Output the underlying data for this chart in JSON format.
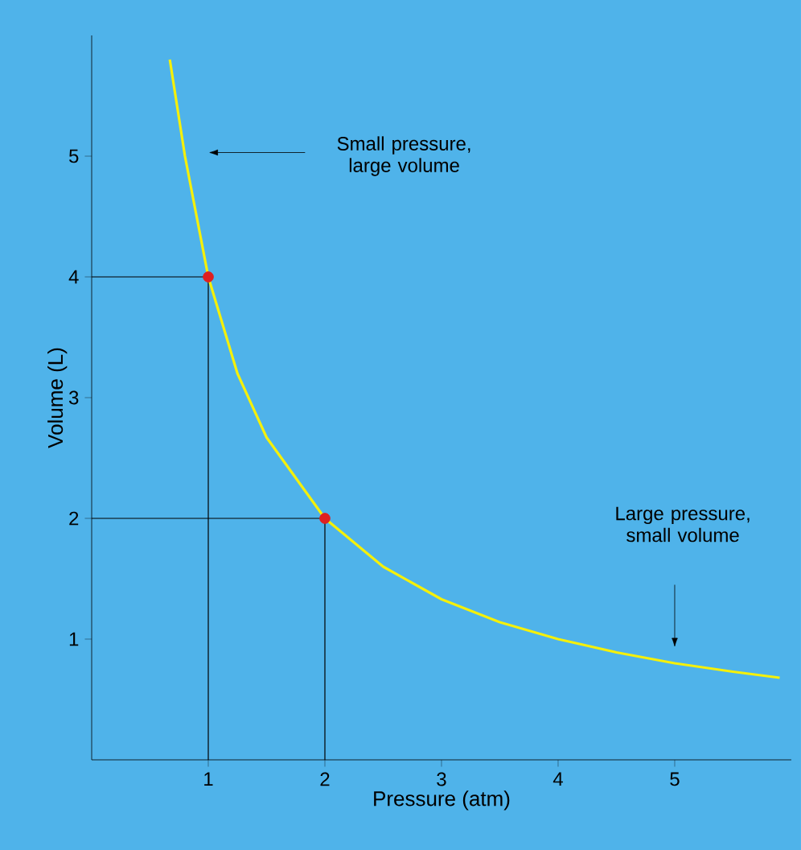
{
  "chart_data": {
    "type": "line",
    "xlabel": "Pressure (atm)",
    "ylabel": "Volume (L)",
    "xlim": [
      0,
      6
    ],
    "ylim": [
      0,
      6
    ],
    "xticks": [
      1,
      2,
      3,
      4,
      5
    ],
    "yticks": [
      1,
      2,
      3,
      4,
      5
    ],
    "grid": false,
    "series": [
      {
        "color": "#000000",
        "x": [
          0,
          1,
          1
        ],
        "values": [
          4,
          4,
          0
        ]
      },
      {
        "color": "#000000",
        "x": [
          0,
          2,
          2
        ],
        "values": [
          2,
          2,
          0
        ]
      },
      {
        "color": "#f5f00a",
        "x": [
          0.67,
          0.8,
          1,
          1.25,
          1.5,
          2,
          2.5,
          3,
          3.5,
          4,
          4.5,
          5,
          5.5,
          5.9
        ],
        "values": [
          5.8,
          5.0,
          4,
          3.2,
          2.67,
          2,
          1.6,
          1.33,
          1.14,
          1.0,
          0.89,
          0.8,
          0.73,
          0.68
        ]
      },
      {
        "type": "scatter",
        "color": "#e02020",
        "x": [
          1,
          2
        ],
        "values": [
          4,
          2
        ]
      }
    ],
    "annotations": [
      "Small pressure, large volume",
      "Large pressure, small volume"
    ]
  }
}
